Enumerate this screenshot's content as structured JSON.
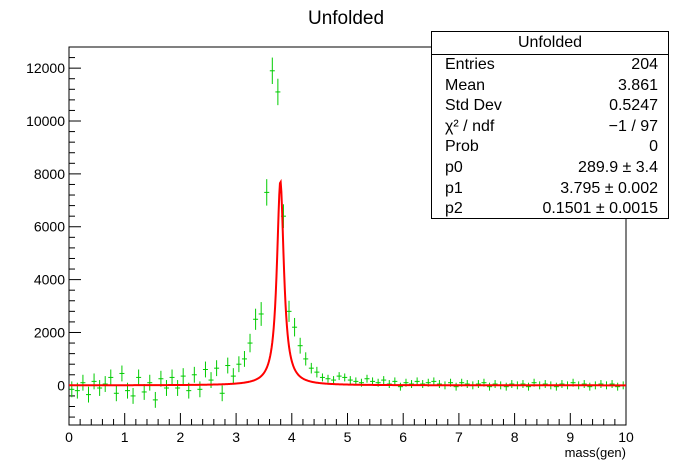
{
  "colors": {
    "data": "#00cc00",
    "fit": "#ff0000",
    "axis": "#000000"
  },
  "chart_data": {
    "type": "scatter",
    "title": "Unfolded",
    "xlabel": "mass(gen)",
    "ylabel": "",
    "xlim": [
      0,
      10
    ],
    "ylim": [
      -1500,
      12800
    ],
    "xticks": [
      0,
      1,
      2,
      3,
      4,
      5,
      6,
      7,
      8,
      9,
      10
    ],
    "yticks": [
      0,
      2000,
      4000,
      6000,
      8000,
      10000,
      12000
    ],
    "grid": false,
    "legend": "top-right stats box",
    "bin_width": 0.1,
    "series": [
      {
        "style": "crosses with error bars",
        "x": [
          0.05,
          0.15,
          0.25,
          0.35,
          0.45,
          0.55,
          0.65,
          0.75,
          0.85,
          0.95,
          1.05,
          1.15,
          1.25,
          1.35,
          1.45,
          1.55,
          1.65,
          1.75,
          1.85,
          1.95,
          2.05,
          2.15,
          2.25,
          2.35,
          2.45,
          2.55,
          2.65,
          2.75,
          2.85,
          2.95,
          3.05,
          3.15,
          3.25,
          3.35,
          3.45,
          3.55,
          3.65,
          3.75,
          3.85,
          3.95,
          4.05,
          4.15,
          4.25,
          4.35,
          4.45,
          4.55,
          4.65,
          4.75,
          4.85,
          4.95,
          5.05,
          5.15,
          5.25,
          5.35,
          5.45,
          5.55,
          5.65,
          5.75,
          5.85,
          5.95,
          6.05,
          6.15,
          6.25,
          6.35,
          6.45,
          6.55,
          6.65,
          6.75,
          6.85,
          6.95,
          7.05,
          7.15,
          7.25,
          7.35,
          7.45,
          7.55,
          7.65,
          7.75,
          7.85,
          7.95,
          8.05,
          8.15,
          8.25,
          8.35,
          8.45,
          8.55,
          8.65,
          8.75,
          8.85,
          8.95,
          9.05,
          9.15,
          9.25,
          9.35,
          9.45,
          9.55,
          9.65,
          9.75,
          9.85,
          9.95
        ],
        "y": [
          -150,
          -200,
          100,
          -350,
          150,
          -100,
          50,
          300,
          -300,
          450,
          -200,
          -400,
          300,
          -250,
          100,
          -550,
          250,
          -100,
          300,
          -100,
          350,
          -200,
          400,
          -150,
          600,
          200,
          650,
          -300,
          750,
          350,
          800,
          1000,
          1600,
          2500,
          2700,
          7300,
          11900,
          11100,
          6400,
          2800,
          2200,
          1500,
          1000,
          650,
          500,
          300,
          250,
          200,
          350,
          300,
          200,
          150,
          100,
          250,
          150,
          100,
          200,
          50,
          150,
          -50,
          100,
          50,
          150,
          50,
          100,
          150,
          50,
          0,
          100,
          -50,
          100,
          50,
          0,
          50,
          100,
          -50,
          50,
          0,
          -50,
          50,
          0,
          50,
          -50,
          100,
          0,
          50,
          0,
          -50,
          50,
          0,
          100,
          0,
          50,
          -50,
          0,
          50,
          0,
          50,
          -50,
          0
        ],
        "yerr": [
          300,
          300,
          300,
          300,
          300,
          300,
          300,
          300,
          300,
          300,
          300,
          300,
          300,
          300,
          300,
          300,
          300,
          300,
          300,
          300,
          300,
          300,
          300,
          300,
          300,
          300,
          300,
          300,
          300,
          300,
          300,
          300,
          350,
          400,
          450,
          500,
          500,
          500,
          450,
          400,
          350,
          300,
          250,
          200,
          200,
          150,
          150,
          150,
          150,
          150,
          150,
          150,
          150,
          150,
          150,
          150,
          150,
          150,
          150,
          150,
          150,
          150,
          150,
          150,
          150,
          150,
          150,
          150,
          150,
          150,
          150,
          150,
          150,
          150,
          150,
          150,
          150,
          150,
          150,
          150,
          150,
          150,
          150,
          150,
          150,
          150,
          150,
          150,
          150,
          150,
          150,
          150,
          150,
          150,
          150,
          150,
          150,
          150,
          150,
          150
        ]
      }
    ],
    "fit": {
      "function": "breit-wigner",
      "p0": 289.9,
      "p1": 3.795,
      "p2": 0.1501
    }
  },
  "stats": {
    "title": "Unfolded",
    "rows": [
      {
        "label": "Entries",
        "value": "204"
      },
      {
        "label": "Mean",
        "value": "3.861"
      },
      {
        "label": "Std Dev",
        "value": "0.5247"
      },
      {
        "label": "χ² / ndf",
        "value": "−1 / 97"
      },
      {
        "label": "Prob",
        "value": "0"
      },
      {
        "label": "p0",
        "value": "289.9 ± 3.4"
      },
      {
        "label": "p1",
        "value": "3.795 ± 0.002"
      },
      {
        "label": "p2",
        "value": "0.1501 ± 0.0015"
      }
    ]
  }
}
